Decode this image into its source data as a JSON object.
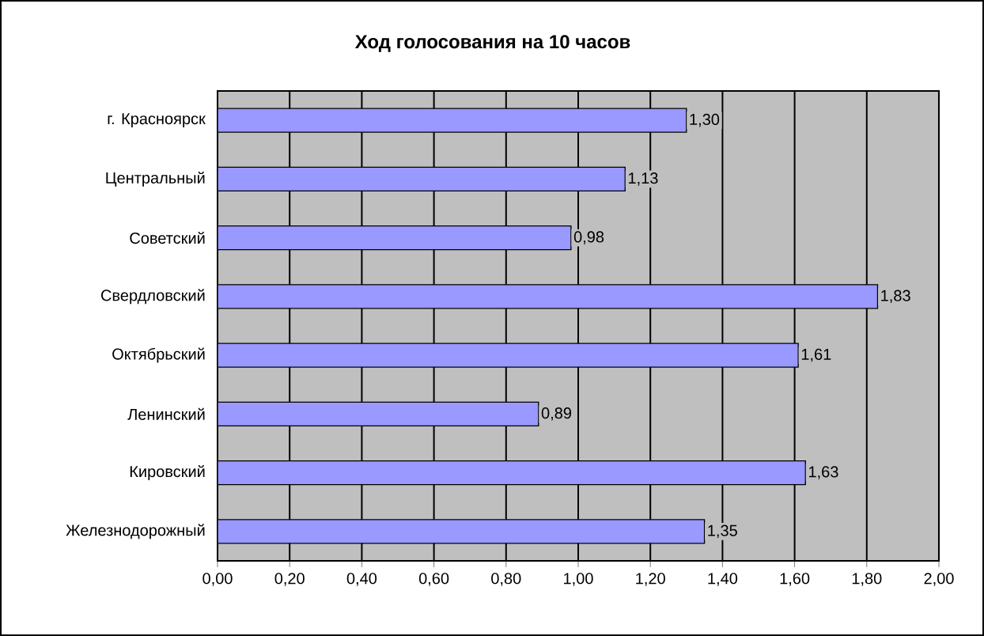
{
  "chart_data": {
    "type": "bar",
    "orientation": "horizontal",
    "title": "Ход голосования на 10 часов",
    "categories": [
      "г. Красноярск",
      "Центральный",
      "Советский",
      "Свердловский",
      "Октябрьский",
      "Ленинский",
      "Кировский",
      "Железнодорожный"
    ],
    "values": [
      1.3,
      1.13,
      0.98,
      1.83,
      1.61,
      0.89,
      1.63,
      1.35
    ],
    "value_labels": [
      "1,30",
      "1,13",
      "0,98",
      "1,83",
      "1,61",
      "0,89",
      "1,63",
      "1,35"
    ],
    "color": "#9999ff",
    "xlim": [
      0,
      2
    ],
    "xticks": [
      {
        "value": 0,
        "label": "0,00"
      },
      {
        "value": 0.2,
        "label": "0,20"
      },
      {
        "value": 0.4,
        "label": "0,40"
      },
      {
        "value": 0.6,
        "label": "0,60"
      },
      {
        "value": 0.8,
        "label": "0,80"
      },
      {
        "value": 1.0,
        "label": "1,00"
      },
      {
        "value": 1.2,
        "label": "1,20"
      },
      {
        "value": 1.4,
        "label": "1,40"
      },
      {
        "value": 1.6,
        "label": "1,60"
      },
      {
        "value": 1.8,
        "label": "1,80"
      },
      {
        "value": 2.0,
        "label": "2,00"
      }
    ],
    "grid": "x"
  }
}
